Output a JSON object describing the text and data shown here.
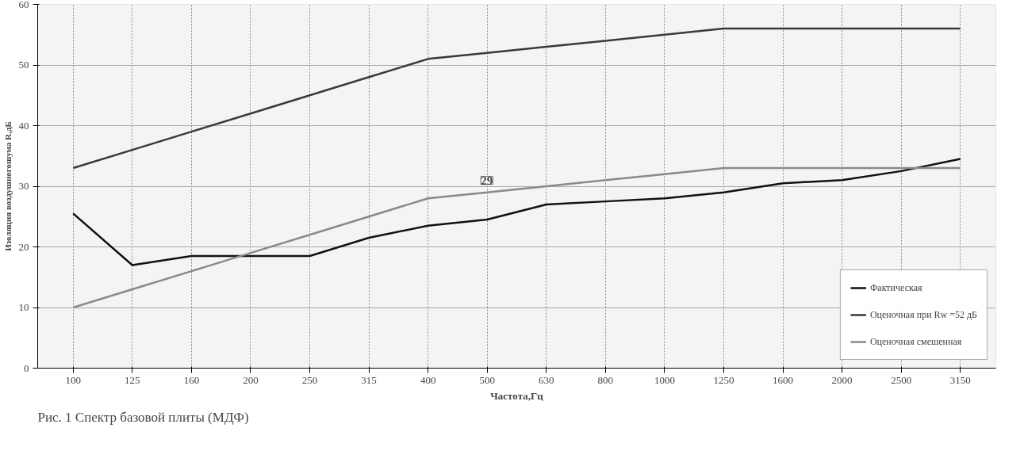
{
  "chart_data": {
    "type": "line",
    "xlabel": "Частота,Гц",
    "ylabel": "Изоляция воздушногошума R,дБ",
    "categories": [
      "100",
      "125",
      "160",
      "200",
      "250",
      "315",
      "400",
      "500",
      "630",
      "800",
      "1000",
      "1250",
      "1600",
      "2000",
      "2500",
      "3150"
    ],
    "series": [
      {
        "name": "Фактическая",
        "color": "#111111",
        "values": [
          25.5,
          17,
          18.5,
          18.5,
          18.5,
          21.5,
          23.5,
          24.5,
          27,
          27.5,
          28,
          29,
          30.5,
          31,
          32.5,
          34.5
        ]
      },
      {
        "name": "Оценочная при Rw =52 дБ",
        "color": "#3a3a3a",
        "values": [
          33,
          36,
          39,
          42,
          45,
          48,
          51,
          52,
          53,
          54,
          55,
          56,
          56,
          56,
          56,
          56
        ]
      },
      {
        "name": "Оценочная смешенная",
        "color": "#8a8a8a",
        "values": [
          10,
          13,
          16,
          19,
          22,
          25,
          28,
          29,
          30,
          31,
          32,
          33,
          33,
          33,
          33,
          33
        ]
      }
    ],
    "ylim": [
      0,
      60
    ],
    "yticks": [
      0,
      10,
      20,
      30,
      40,
      50,
      60
    ],
    "grid": true,
    "legend": "bottom right",
    "marker": "none",
    "line_style": "solid",
    "annotations": [
      {
        "text": "29",
        "x": "500",
        "y": 29
      },
      "Рис. 1 Спектр базовой плиты (МДФ)"
    ]
  }
}
